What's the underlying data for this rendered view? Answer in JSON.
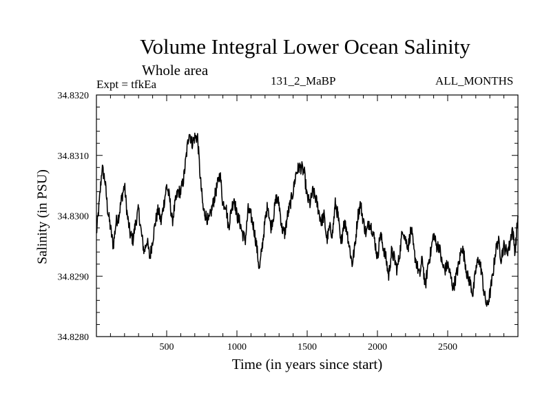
{
  "chart_data": {
    "type": "line",
    "title": "Volume Integral Lower Ocean Salinity",
    "subtitle": "Whole area",
    "annotations": {
      "expt": "Expt = tfkEa",
      "run": "131_2_MaBP",
      "months": "ALL_MONTHS"
    },
    "xlabel": "Time (in years since start)",
    "ylabel": "Salinity (in PSU)",
    "xlim": [
      0,
      3000
    ],
    "ylim": [
      34.828,
      34.832
    ],
    "xticks": [
      500,
      1000,
      1500,
      2000,
      2500
    ],
    "xtick_labels": [
      "500",
      "1000",
      "1500",
      "2000",
      "2500"
    ],
    "yticks": [
      34.828,
      34.829,
      34.83,
      34.831,
      34.832
    ],
    "ytick_labels": [
      "34.8280",
      "34.8290",
      "34.8300",
      "34.8310",
      "34.8320"
    ],
    "grid": false,
    "line_color": "#000000",
    "series": [
      {
        "x": [
          0,
          20,
          40,
          60,
          80,
          100,
          120,
          140,
          160,
          180,
          200,
          220,
          240,
          260,
          280,
          300,
          320,
          340,
          360,
          380,
          400,
          420,
          440,
          460,
          480,
          500,
          520,
          540,
          560,
          580,
          600,
          620,
          640,
          660,
          680,
          700,
          720,
          740,
          760,
          780,
          800,
          820,
          840,
          860,
          880,
          900,
          920,
          940,
          960,
          980,
          1000,
          1020,
          1040,
          1060,
          1080,
          1100,
          1120,
          1140,
          1160,
          1180,
          1200,
          1220,
          1240,
          1260,
          1280,
          1300,
          1320,
          1340,
          1360,
          1380,
          1400,
          1420,
          1440,
          1460,
          1480,
          1500,
          1520,
          1540,
          1560,
          1580,
          1600,
          1620,
          1640,
          1660,
          1680,
          1700,
          1720,
          1740,
          1760,
          1780,
          1800,
          1820,
          1840,
          1860,
          1880,
          1900,
          1920,
          1940,
          1960,
          1980,
          2000,
          2020,
          2040,
          2060,
          2080,
          2100,
          2120,
          2140,
          2160,
          2180,
          2200,
          2220,
          2240,
          2260,
          2280,
          2300,
          2320,
          2340,
          2360,
          2380,
          2400,
          2420,
          2440,
          2460,
          2480,
          2500,
          2520,
          2540,
          2560,
          2580,
          2600,
          2620,
          2640,
          2660,
          2680,
          2700,
          2720,
          2740,
          2760,
          2780,
          2800,
          2820,
          2840,
          2860,
          2880,
          2900,
          2920,
          2940,
          2960,
          2980,
          3000
        ],
        "values": [
          34.8297,
          34.8302,
          34.8308,
          34.8306,
          34.8301,
          34.8298,
          34.8295,
          34.8299,
          34.83,
          34.8303,
          34.8305,
          34.83,
          34.8297,
          34.8296,
          34.8299,
          34.8301,
          34.8297,
          34.8294,
          34.8296,
          34.8293,
          34.8296,
          34.8299,
          34.8301,
          34.8299,
          34.8302,
          34.8305,
          34.8303,
          34.8299,
          34.8302,
          34.8304,
          34.8304,
          34.8306,
          34.831,
          34.8314,
          34.8312,
          34.8313,
          34.8313,
          34.8306,
          34.8301,
          34.83,
          34.8299,
          34.8301,
          34.8303,
          34.8305,
          34.8307,
          34.8302,
          34.8302,
          34.8298,
          34.8301,
          34.8303,
          34.83,
          34.8299,
          34.8297,
          34.8296,
          34.8301,
          34.83,
          34.8298,
          34.8295,
          34.8291,
          34.8295,
          34.8299,
          34.8302,
          34.8298,
          34.83,
          34.8303,
          34.8302,
          34.8298,
          34.8297,
          34.83,
          34.8302,
          34.8304,
          34.8307,
          34.8308,
          34.8308,
          34.8307,
          34.8303,
          34.8302,
          34.8304,
          34.8303,
          34.8301,
          34.8299,
          34.83,
          34.8296,
          34.8298,
          34.8297,
          34.8302,
          34.83,
          34.8295,
          34.8299,
          34.8298,
          34.8295,
          34.8292,
          34.8295,
          34.83,
          34.8302,
          34.8299,
          34.8297,
          34.8299,
          34.8298,
          34.8296,
          34.8293,
          34.8297,
          34.8295,
          34.8293,
          34.829,
          34.8294,
          34.8293,
          34.8291,
          34.8294,
          34.8298,
          34.8296,
          34.8295,
          34.8298,
          34.8294,
          34.8292,
          34.829,
          34.8293,
          34.8288,
          34.8292,
          34.8294,
          34.8297,
          34.8295,
          34.8295,
          34.8292,
          34.8291,
          34.8292,
          34.829,
          34.8288,
          34.829,
          34.8292,
          34.8295,
          34.8293,
          34.829,
          34.8289,
          34.8287,
          34.8291,
          34.8293,
          34.8291,
          34.8287,
          34.8285,
          34.8287,
          34.829,
          34.8294,
          34.8296,
          34.8293,
          34.8295,
          34.8294,
          34.8295,
          34.8298,
          34.8294,
          34.83
        ]
      }
    ]
  }
}
